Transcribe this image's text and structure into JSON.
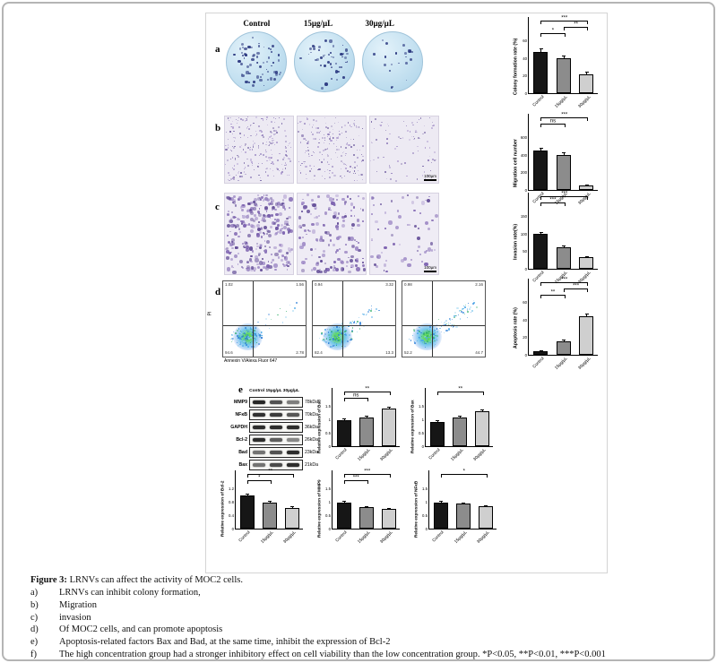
{
  "page": {
    "frame_color": "#b5b5b5"
  },
  "figure": {
    "column_headers": [
      "Control",
      "15µg/µL",
      "30µg/µL"
    ],
    "panels": {
      "a": {
        "label": "a",
        "colony_density": [
          62,
          46,
          20
        ]
      },
      "b": {
        "label": "b",
        "scale_bar": "100µm",
        "cell_density": [
          230,
          200,
          85
        ]
      },
      "c": {
        "label": "c",
        "scale_bar": "100µm",
        "cell_density": [
          290,
          165,
          65
        ]
      },
      "d": {
        "label": "d",
        "xlabel": "Annexin V/Alexa Fluor 647",
        "ylabel": "PI",
        "plots": [
          {
            "q1": "1.02",
            "q2": "1.56",
            "q3": "94.6",
            "q4": "2.78",
            "spread": 0.12
          },
          {
            "q1": "0.94",
            "q2": "3.32",
            "q3": "82.4",
            "q4": "13.3",
            "spread": 0.3
          },
          {
            "q1": "0.98",
            "q2": "2.16",
            "q3": "52.2",
            "q4": "44.7",
            "spread": 0.55
          }
        ]
      },
      "e": {
        "label": "e",
        "blot_header": "Control 15µg/µL 30µg/µL",
        "blots": [
          {
            "protein": "MMP9",
            "kda": "78kDa",
            "bands": [
              0.95,
              0.75,
              0.55
            ]
          },
          {
            "protein": "NFκB",
            "kda": "70kDa",
            "bands": [
              0.9,
              0.85,
              0.72
            ]
          },
          {
            "protein": "GAPDH",
            "kda": "36kDa",
            "bands": [
              0.92,
              0.92,
              0.92
            ]
          },
          {
            "protein": "Bcl-2",
            "kda": "26kDa",
            "bands": [
              0.92,
              0.7,
              0.5
            ]
          },
          {
            "protein": "Bad",
            "kda": "23kDa",
            "bands": [
              0.6,
              0.75,
              0.92
            ]
          },
          {
            "protein": "Bax",
            "kda": "21kDa",
            "bands": [
              0.6,
              0.78,
              0.92
            ]
          }
        ]
      }
    }
  },
  "chart_data": [
    {
      "id": "colony",
      "type": "bar",
      "ylabel": "Colony formation rate (%)",
      "categories": [
        "Control",
        "15µg/µL",
        "30µg/µL"
      ],
      "values": [
        48,
        41,
        22
      ],
      "errors": [
        4,
        3,
        3
      ],
      "ylim": [
        0,
        60
      ],
      "yticks": [
        0,
        20,
        40,
        60
      ],
      "bar_colors": [
        "#161616",
        "#8c8c8c",
        "#cfcfcf"
      ],
      "sig": [
        {
          "from": 0,
          "to": 1,
          "label": "*"
        },
        {
          "from": 1,
          "to": 2,
          "label": "**"
        },
        {
          "from": 0,
          "to": 2,
          "label": "***"
        }
      ]
    },
    {
      "id": "migration",
      "type": "bar",
      "ylabel": "Migration cell number",
      "categories": [
        "Control",
        "15µg/µL",
        "30µg/µL"
      ],
      "values": [
        455,
        410,
        55
      ],
      "errors": [
        28,
        25,
        10
      ],
      "ylim": [
        0,
        600
      ],
      "yticks": [
        0,
        200,
        400,
        600
      ],
      "bar_colors": [
        "#161616",
        "#8c8c8c",
        "#cfcfcf"
      ],
      "sig": [
        {
          "from": 0,
          "to": 1,
          "label": "ns"
        },
        {
          "from": 0,
          "to": 2,
          "label": "***"
        }
      ]
    },
    {
      "id": "invasion",
      "type": "bar",
      "ylabel": "Invasion rate(%)",
      "categories": [
        "Control",
        "15µg/µL",
        "30µg/µL"
      ],
      "values": [
        100,
        62,
        33
      ],
      "errors": [
        6,
        5,
        4
      ],
      "ylim": [
        0,
        150
      ],
      "yticks": [
        0,
        50,
        100,
        150
      ],
      "bar_colors": [
        "#161616",
        "#8c8c8c",
        "#cfcfcf"
      ],
      "sig": [
        {
          "from": 0,
          "to": 1,
          "label": "***"
        },
        {
          "from": 0,
          "to": 2,
          "label": "***"
        }
      ]
    },
    {
      "id": "apoptosis",
      "type": "bar",
      "ylabel": "Apoptosis rate (%)",
      "categories": [
        "Control",
        "15µg/µL",
        "30µg/µL"
      ],
      "values": [
        4.6,
        16,
        45
      ],
      "errors": [
        0.6,
        2,
        3
      ],
      "ylim": [
        0,
        60
      ],
      "yticks": [
        0,
        20,
        40,
        60
      ],
      "bar_colors": [
        "#161616",
        "#8c8c8c",
        "#cfcfcf"
      ],
      "sig": [
        {
          "from": 0,
          "to": 1,
          "label": "**"
        },
        {
          "from": 1,
          "to": 2,
          "label": "***"
        },
        {
          "from": 0,
          "to": 2,
          "label": "***"
        }
      ]
    },
    {
      "id": "bad",
      "type": "bar",
      "ylabel": "Relative expression of Bad",
      "categories": [
        "Control",
        "15µg/µL",
        "30µg/µL"
      ],
      "values": [
        1.0,
        1.08,
        1.42
      ],
      "errors": [
        0.05,
        0.06,
        0.08
      ],
      "ylim": [
        0,
        1.5
      ],
      "yticks": [
        0,
        0.5,
        1.0,
        1.5
      ],
      "bar_colors": [
        "#161616",
        "#8c8c8c",
        "#cfcfcf"
      ],
      "sig": [
        {
          "from": 0,
          "to": 1,
          "label": "ns"
        },
        {
          "from": 0,
          "to": 2,
          "label": "**"
        }
      ]
    },
    {
      "id": "bax",
      "type": "bar",
      "ylabel": "Relative expression of Bax",
      "categories": [
        "Control",
        "15µg/µL",
        "30µg/µL"
      ],
      "values": [
        0.92,
        1.1,
        1.32
      ],
      "errors": [
        0.06,
        0.07,
        0.08
      ],
      "ylim": [
        0,
        1.5
      ],
      "yticks": [
        0,
        0.5,
        1.0,
        1.5
      ],
      "bar_colors": [
        "#161616",
        "#8c8c8c",
        "#cfcfcf"
      ],
      "sig": [
        {
          "from": 0,
          "to": 2,
          "label": "**"
        }
      ]
    },
    {
      "id": "bcl2",
      "type": "bar",
      "ylabel": "Relative expression of Bcl-2",
      "categories": [
        "Control",
        "15µg/µL",
        "30µg/µL"
      ],
      "values": [
        1.0,
        0.78,
        0.63
      ],
      "errors": [
        0.05,
        0.05,
        0.05
      ],
      "ylim": [
        0,
        1.2
      ],
      "yticks": [
        0,
        0.4,
        0.8,
        1.2
      ],
      "bar_colors": [
        "#161616",
        "#8c8c8c",
        "#cfcfcf"
      ],
      "sig": [
        {
          "from": 0,
          "to": 1,
          "label": "*"
        },
        {
          "from": 0,
          "to": 2,
          "label": "**"
        }
      ]
    },
    {
      "id": "mmp9",
      "type": "bar",
      "ylabel": "Relative expression of MMP9",
      "categories": [
        "Control",
        "15µg/µL",
        "30µg/µL"
      ],
      "values": [
        1.0,
        0.8,
        0.74
      ],
      "errors": [
        0.04,
        0.05,
        0.05
      ],
      "ylim": [
        0,
        1.5
      ],
      "yticks": [
        0,
        0.5,
        1.0,
        1.5
      ],
      "bar_colors": [
        "#161616",
        "#8c8c8c",
        "#cfcfcf"
      ],
      "sig": [
        {
          "from": 0,
          "to": 1,
          "label": "***"
        },
        {
          "from": 0,
          "to": 2,
          "label": "***"
        }
      ]
    },
    {
      "id": "nfkb",
      "type": "bar",
      "ylabel": "Relative expression of NFκB",
      "categories": [
        "Control",
        "15µg/µL",
        "30µg/µL"
      ],
      "values": [
        1.0,
        0.96,
        0.85
      ],
      "errors": [
        0.04,
        0.04,
        0.05
      ],
      "ylim": [
        0,
        1.5
      ],
      "yticks": [
        0,
        0.5,
        1.0,
        1.5
      ],
      "bar_colors": [
        "#161616",
        "#8c8c8c",
        "#cfcfcf"
      ],
      "sig": [
        {
          "from": 0,
          "to": 2,
          "label": "*"
        }
      ]
    }
  ],
  "caption": {
    "title_bold": "Figure 3:",
    "title_rest": " LRNVs can affect the activity of MOC2 cells.",
    "items": [
      {
        "label": "a)",
        "text": "LRNVs can inhibit colony formation,"
      },
      {
        "label": "b)",
        "text": "Migration"
      },
      {
        "label": "c)",
        "text": "invasion"
      },
      {
        "label": "d)",
        "text": "Of MOC2 cells, and can promote apoptosis"
      },
      {
        "label": "e)",
        "text": "Apoptosis-related factors Bax and Bad, at the same time, inhibit the expression of Bcl-2"
      },
      {
        "label": "f)",
        "text": "The high concentration group had a stronger inhibitory effect on cell viability than the low concentration group. *P<0.05, **P<0.01, ***P<0.001"
      }
    ]
  }
}
